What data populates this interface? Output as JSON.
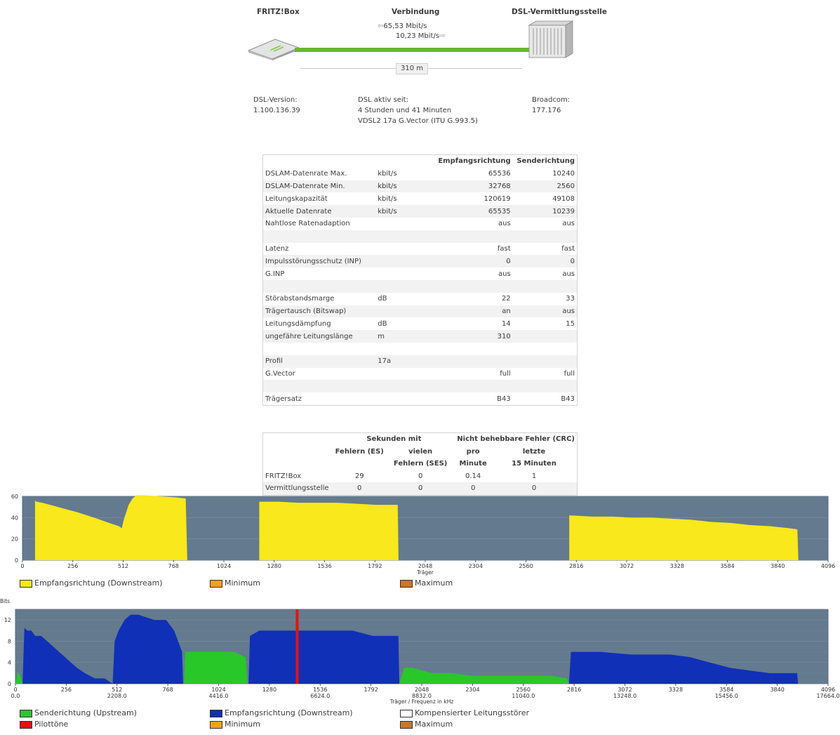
{
  "overview": {
    "fritzbox_label": "FRITZ!Box",
    "connection_label": "Verbindung",
    "dslam_label": "DSL-Vermittlungsstelle",
    "downstream_rate": "65,53 Mbit/s",
    "upstream_rate": "10,23 Mbit/s",
    "line_length": "310 m",
    "dsl_version_label": "DSL-Version:",
    "dsl_version_value": "1.100.136.39",
    "dsl_active_label": "DSL aktiv seit:",
    "dsl_active_value": "4 Stunden und 41 Minuten",
    "dsl_standard": "VDSL2 17a G.Vector (ITU G.993.5)",
    "chipset_label": "Broadcom:",
    "chipset_value": "177.176"
  },
  "line_table": {
    "col_down": "Empfangsrichtung",
    "col_up": "Senderichtung",
    "rows": [
      {
        "label": "DSLAM-Datenrate Max.",
        "unit": "kbit/s",
        "down": "65536",
        "up": "10240"
      },
      {
        "label": "DSLAM-Datenrate Min.",
        "unit": "kbit/s",
        "down": "32768",
        "up": "2560"
      },
      {
        "label": "Leitungskapazität",
        "unit": "kbit/s",
        "down": "120619",
        "up": "49108"
      },
      {
        "label": "Aktuelle Datenrate",
        "unit": "kbit/s",
        "down": "65535",
        "up": "10239"
      },
      {
        "label": "Nahtlose Ratenadaption",
        "unit": "",
        "down": "aus",
        "up": "aus"
      },
      {
        "label": "",
        "unit": "",
        "down": "",
        "up": ""
      },
      {
        "label": "Latenz",
        "unit": "",
        "down": "fast",
        "up": "fast"
      },
      {
        "label": "Impulsstörungsschutz (INP)",
        "unit": "",
        "down": "0",
        "up": "0"
      },
      {
        "label": "G.INP",
        "unit": "",
        "down": "aus",
        "up": "aus"
      },
      {
        "label": "",
        "unit": "",
        "down": "",
        "up": ""
      },
      {
        "label": "Störabstandsmarge",
        "unit": "dB",
        "down": "22",
        "up": "33"
      },
      {
        "label": "Trägertausch (Bitswap)",
        "unit": "",
        "down": "an",
        "up": "aus"
      },
      {
        "label": "Leitungsdämpfung",
        "unit": "dB",
        "down": "14",
        "up": "15"
      },
      {
        "label": "ungefähre Leitungslänge",
        "unit": "m",
        "down": "310",
        "up": ""
      },
      {
        "label": "",
        "unit": "",
        "down": "",
        "up": ""
      },
      {
        "label": "Profil",
        "unit": "17a",
        "down": "",
        "up": ""
      },
      {
        "label": "G.Vector",
        "unit": "",
        "down": "full",
        "up": "full"
      },
      {
        "label": "",
        "unit": "",
        "down": "",
        "up": ""
      },
      {
        "label": "Trägersatz",
        "unit": "",
        "down": "B43",
        "up": "B43"
      }
    ]
  },
  "error_table": {
    "group_seconds": "Sekunden mit",
    "group_crc": "Nicht behebbare Fehler (CRC)",
    "col_es": "Fehlern (ES)",
    "col_ses_1": "vielen",
    "col_ses_2": "Fehlern (SES)",
    "col_pm_1": "pro",
    "col_pm_2": "Minute",
    "col_15_1": "letzte",
    "col_15_2": "15 Minuten",
    "rows": [
      {
        "label": "FRITZ!Box",
        "es": "29",
        "ses": "0",
        "pm": "0.14",
        "m15": "1"
      },
      {
        "label": "Vermittlungsstelle",
        "es": "0",
        "ses": "0",
        "pm": "0",
        "m15": "0"
      }
    ]
  },
  "colors": {
    "plot_bg": "#647a8e",
    "downstream_snr": "#f8e81c",
    "downstream_bits": "#1030b8",
    "upstream_bits": "#28c828",
    "pilot": "#e81010",
    "minimum": "#f0a020",
    "maximum": "#c87828",
    "line_green": "#68b82a"
  },
  "chart_data": [
    {
      "type": "area",
      "title": "",
      "xlabel": "Träger",
      "ylabel": "",
      "xlim": [
        0,
        4096
      ],
      "ylim": [
        0,
        60
      ],
      "xticks": [
        "0",
        "256",
        "512",
        "768",
        "1024",
        "1280",
        "1536",
        "1792",
        "2048",
        "2304",
        "2560",
        "2816",
        "3072",
        "3328",
        "3584",
        "3840",
        "4096"
      ],
      "yticks": [
        "0",
        "20",
        "40",
        "60"
      ],
      "grid": true,
      "legend": [
        "Empfangsrichtung (Downstream)",
        "Minimum",
        "Maximum"
      ],
      "series": [
        {
          "name": "Empfangsrichtung (Downstream)",
          "x": [
            64,
            72,
            100,
            160,
            220,
            280,
            330,
            380,
            440,
            490,
            505,
            515,
            540,
            560,
            580,
            620,
            700,
            780,
            830,
            838
          ],
          "y": [
            56,
            55,
            54,
            51,
            48,
            45,
            42,
            39,
            35,
            32,
            30,
            38,
            52,
            58,
            61,
            61,
            60,
            59,
            58,
            0
          ]
        },
        {
          "name": "Empfangsrichtung (Downstream)",
          "x": [
            1204,
            1212,
            1300,
            1400,
            1500,
            1600,
            1700,
            1800,
            1908,
            1912
          ],
          "y": [
            55,
            55,
            55,
            54,
            54,
            54,
            53,
            52,
            52,
            0
          ]
        },
        {
          "name": "Empfangsrichtung (Downstream)",
          "x": [
            2780,
            2788,
            2900,
            3000,
            3100,
            3200,
            3300,
            3400,
            3500,
            3600,
            3700,
            3800,
            3900,
            3940,
            3945
          ],
          "y": [
            42,
            42,
            41,
            41,
            40,
            40,
            39,
            38,
            36,
            35,
            33,
            32,
            30,
            29,
            0
          ]
        }
      ]
    },
    {
      "type": "area",
      "title": "",
      "xlabel": "Träger / Frequenz in kHz",
      "ylabel": "Bits",
      "xlim": [
        0,
        4096
      ],
      "ylim": [
        0,
        14
      ],
      "xticks": [
        "0",
        "256",
        "512",
        "768",
        "1024",
        "1280",
        "1536",
        "1792",
        "2048",
        "2304",
        "2560",
        "2816",
        "3072",
        "3328",
        "3584",
        "3840",
        "4096"
      ],
      "xticks_khz": [
        "0.0",
        "2208.0",
        "4416.0",
        "6624.0",
        "8832.0",
        "11040.0",
        "13248.0",
        "15456.0",
        "17664.0"
      ],
      "yticks": [
        "0",
        "4",
        "8",
        "12"
      ],
      "grid": true,
      "legend": [
        "Senderichtung (Upstream)",
        "Empfangsrichtung (Downstream)",
        "Kompensierter Leitungsstörer",
        "Pilottöne",
        "Minimum",
        "Maximum"
      ],
      "series": [
        {
          "name": "Senderichtung (Upstream)",
          "color": "upstream",
          "x": [
            0,
            10,
            18,
            28,
            36
          ],
          "y": [
            0,
            2,
            2,
            1,
            0
          ]
        },
        {
          "name": "Empfangsrichtung (Downstream)",
          "color": "downstream",
          "x": [
            36,
            45,
            60,
            80,
            100,
            130,
            160,
            190,
            220,
            250,
            280,
            310,
            350,
            400,
            450,
            490,
            500,
            520,
            550,
            580,
            620,
            700,
            760,
            800,
            840,
            845
          ],
          "y": [
            0,
            10.5,
            10,
            10,
            9,
            9,
            8,
            7,
            6,
            5,
            4,
            3,
            2,
            1,
            1,
            0,
            8,
            10,
            12,
            13,
            13,
            12,
            12,
            10,
            6,
            0
          ]
        },
        {
          "name": "Senderichtung (Upstream)",
          "color": "upstream",
          "x": [
            850,
            856,
            1100,
            1160,
            1170
          ],
          "y": [
            0,
            6,
            6,
            5,
            0
          ]
        },
        {
          "name": "Empfangsrichtung (Downstream)",
          "color": "downstream",
          "x": [
            1175,
            1182,
            1230,
            1300,
            1500,
            1700,
            1800,
            1930,
            1935
          ],
          "y": [
            0,
            9,
            10,
            10,
            10,
            10,
            9,
            9,
            0
          ]
        },
        {
          "name": "Senderichtung (Upstream)",
          "color": "upstream",
          "x": [
            1935,
            1960,
            2000,
            2100,
            2200,
            2300,
            2400,
            2500,
            2600,
            2700,
            2780,
            2790
          ],
          "y": [
            0,
            3,
            3,
            2,
            2,
            1.5,
            1.5,
            1.5,
            1.5,
            1.5,
            1,
            0
          ]
        },
        {
          "name": "Empfangsrichtung (Downstream)",
          "color": "downstream",
          "x": [
            2790,
            2800,
            2950,
            3100,
            3300,
            3400,
            3500,
            3600,
            3700,
            3800,
            3900,
            3940,
            3945
          ],
          "y": [
            0,
            6,
            6,
            5.5,
            5.5,
            5,
            4,
            3,
            2.5,
            2,
            2,
            2,
            0
          ]
        }
      ],
      "pilot_tones": [
        1420
      ]
    }
  ]
}
